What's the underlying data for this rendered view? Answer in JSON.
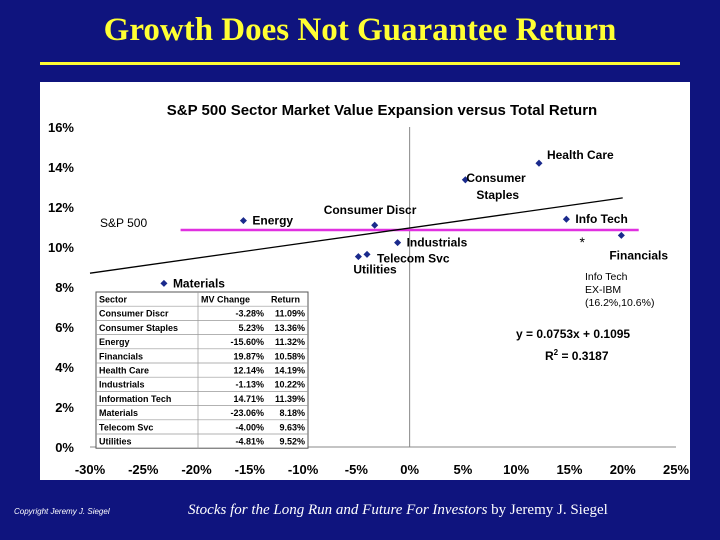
{
  "slide": {
    "title": "Growth Does Not Guarantee Return",
    "copyright": "Copyright Jeremy J. Siegel",
    "book": "Stocks for the Long Run and Future For Investors",
    "author": " by Jeremy J. Siegel"
  },
  "colors": {
    "background": "#0f147e",
    "title": "#ffff33",
    "marker": "#1a2a8c",
    "sp500_line": "#e030e0",
    "trend_line": "#000000"
  },
  "chart_data": {
    "type": "scatter",
    "title": "S&P 500 Sector Market Value Expansion versus Total Return",
    "xlabel": "",
    "ylabel": "",
    "xlim": [
      -30,
      25
    ],
    "ylim": [
      0,
      16
    ],
    "x_ticks": [
      "-30%",
      "-25%",
      "-20%",
      "-15%",
      "-10%",
      "-5%",
      "0%",
      "5%",
      "10%",
      "15%",
      "20%",
      "25%"
    ],
    "y_ticks": [
      "0%",
      "2%",
      "4%",
      "6%",
      "8%",
      "10%",
      "12%",
      "14%",
      "16%"
    ],
    "grid": false,
    "points": [
      {
        "label": "Consumer Discr",
        "x": -3.28,
        "y": 11.09
      },
      {
        "label": "Consumer Staples",
        "x": 5.23,
        "y": 13.36
      },
      {
        "label": "Energy",
        "x": -15.6,
        "y": 11.32
      },
      {
        "label": "Financials",
        "x": 19.87,
        "y": 10.58
      },
      {
        "label": "Health Care",
        "x": 12.14,
        "y": 14.19
      },
      {
        "label": "Industrials",
        "x": -1.13,
        "y": 10.22
      },
      {
        "label": "Info Tech",
        "x": 14.71,
        "y": 11.39
      },
      {
        "label": "Materials",
        "x": -23.06,
        "y": 8.18
      },
      {
        "label": "Telecom Svc",
        "x": -4.0,
        "y": 9.63
      },
      {
        "label": "Utilities",
        "x": -4.81,
        "y": 9.52
      }
    ],
    "point_label_text": {
      "Consumer Discr": [
        "Consumer Discr"
      ],
      "Consumer Staples": [
        "Consumer",
        "Staples"
      ],
      "Energy": [
        "Energy"
      ],
      "Financials": [
        "Financials"
      ],
      "Health Care": [
        "Health Care"
      ],
      "Industrials": [
        "Industrials"
      ],
      "Info Tech": [
        "Info Tech"
      ],
      "Materials": [
        "Materials"
      ],
      "Telecom Svc": [
        "Telecom Svc"
      ],
      "Utilities": [
        "Utilities"
      ]
    },
    "special_point": {
      "marker": "*",
      "x": 16.2,
      "y": 10.6,
      "label_lines": [
        "Info Tech",
        "EX-IBM",
        "(16.2%,10.6%)"
      ]
    },
    "reference_line": {
      "label": "S&P 500",
      "y": 10.85
    },
    "trendline": {
      "slope": 0.0753,
      "intercept": 0.1095,
      "x_range": [
        -30,
        20
      ],
      "equation": "y = 0.0753x + 0.1095",
      "r2_prefix": "R",
      "r2_sup": "2",
      "r2_suffix": " = 0.3187"
    },
    "table": {
      "headers": [
        "Sector",
        "MV Change",
        "Return"
      ],
      "rows": [
        [
          "Consumer Discr",
          "-3.28%",
          "11.09%"
        ],
        [
          "Consumer Staples",
          "5.23%",
          "13.36%"
        ],
        [
          "Energy",
          "-15.60%",
          "11.32%"
        ],
        [
          "Financials",
          "19.87%",
          "10.58%"
        ],
        [
          "Health Care",
          "12.14%",
          "14.19%"
        ],
        [
          "Industrials",
          "-1.13%",
          "10.22%"
        ],
        [
          "Information Tech",
          "14.71%",
          "11.39%"
        ],
        [
          "Materials",
          "-23.06%",
          "8.18%"
        ],
        [
          "Telecom Svc",
          "-4.00%",
          "9.63%"
        ],
        [
          "Utilities",
          "-4.81%",
          "9.52%"
        ]
      ]
    }
  }
}
